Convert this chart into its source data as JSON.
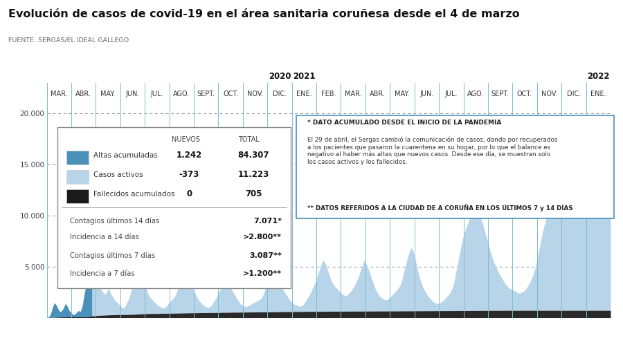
{
  "title": "Evolución de casos de covid-19 en el área sanitaria coruñesa desde el 4 de marzo",
  "source": "FUENTE: SERGAS/EL IDEAL GALLEGO",
  "background_color": "#ffffff",
  "area_color_light": "#b8d4e8",
  "area_color_dark": "#4a90b8",
  "deceased_color": "#2a2a2a",
  "vline_color": "#7abcd4",
  "ylim": [
    0,
    21000
  ],
  "yticks": [
    5000,
    10000,
    15000,
    20000
  ],
  "ytick_labels": [
    "5.000",
    "10.000",
    "15.000",
    "20.000"
  ],
  "months": [
    "MAR.",
    "ABR.",
    "MAY.",
    "JUN.",
    "JUL.",
    "AGO.",
    "SEPT.",
    "OCT.",
    "NOV.",
    "DIC.",
    "ENE.",
    "FEB.",
    "MAR.",
    "ABR.",
    "MAY.",
    "JUN.",
    "JUL.",
    "AGO.",
    "SEPT.",
    "OCT.",
    "NOV.",
    "DIC.",
    "ENE."
  ],
  "year_labels": [
    {
      "label": "2020",
      "index": 9
    },
    {
      "label": "2021",
      "index": 10
    },
    {
      "label": "2022",
      "index": 22
    }
  ],
  "legend_nuevos_label": "NUEVOS",
  "legend_total_label": "TOTAL",
  "legend_items": [
    {
      "label": "Altas acumuladas",
      "nuevos": "1.242",
      "total": "84.307",
      "color": "#4a90b8"
    },
    {
      "label": "Casos activos",
      "nuevos": "-373",
      "total": "11.223",
      "color": "#b8d4e8"
    },
    {
      "label": "Fallecidos acumulados",
      "nuevos": "0",
      "total": "705",
      "color": "#1a1a1a"
    }
  ],
  "extra_stats": [
    {
      "label": "Contagios últimos 14 días",
      "value": "7.071*"
    },
    {
      "label": "Incidencia a 14 días",
      "value": ">2.800**"
    },
    {
      "label": "Contagios últimos 7 días",
      "value": "3.087**"
    },
    {
      "label": "Incidencia a 7 días",
      "value": ">1.200**"
    }
  ],
  "note_line1": "* DATO ACUMULADO DESDE EL INICIO DE LA PANDEMIA",
  "note_line2": "El 29 de abril, el Sergas cambió la comunicación de casos, dando por recuperados\na los pacientes que pasaron la cuarentena en su hogar, por lo que el balance es\nnegativo al haber más altas que nuevos casos. Desde ese día, se muestran solo\nlos casos activos y los fallecidos.",
  "note_line3": "** DATOS REFERIDOS A LA CIUDAD DE A CORUÑA EN LOS ÚLTIMOS 7 y 14 DÍAS",
  "active_cases": [
    0,
    50,
    300,
    900,
    1400,
    1200,
    800,
    500,
    600,
    900,
    1300,
    1000,
    600,
    400,
    200,
    250,
    450,
    600,
    500,
    1100,
    2200,
    3100,
    4200,
    5100,
    5800,
    4900,
    4000,
    3500,
    3000,
    2500,
    2200,
    2000,
    2300,
    2600,
    2100,
    1800,
    1500,
    1300,
    1100,
    900,
    700,
    650,
    900,
    1300,
    1700,
    2400,
    3000,
    4500,
    5900,
    6500,
    5800,
    4500,
    3200,
    2400,
    1900,
    1600,
    1400,
    1200,
    1000,
    800,
    700,
    600,
    500,
    600,
    800,
    1000,
    1200,
    1400,
    1600,
    2000,
    2500,
    2800,
    3200,
    3600,
    4000,
    3800,
    3300,
    2800,
    2300,
    1900,
    1500,
    1200,
    1000,
    800,
    650,
    550,
    500,
    600,
    800,
    1100,
    1400,
    1800,
    2100,
    2500,
    3000,
    3300,
    3100,
    2800,
    2400,
    2000,
    1700,
    1400,
    1100,
    850,
    700,
    600,
    550,
    600,
    700,
    800,
    900,
    1000,
    1100,
    1200,
    1300,
    1600,
    2100,
    2800,
    3600,
    4500,
    5400,
    4800,
    4100,
    3400,
    2800,
    2400,
    2100,
    1800,
    1500,
    1200,
    1000,
    800,
    700,
    600,
    550,
    500,
    600,
    800,
    1100,
    1400,
    1700,
    2100,
    2500,
    2900,
    3500,
    4000,
    4600,
    5000,
    4800,
    4300,
    3700,
    3200,
    2800,
    2500,
    2300,
    2100,
    1900,
    1700,
    1600,
    1500,
    1600,
    1800,
    2000,
    2300,
    2600,
    3000,
    3400,
    4000,
    4500,
    5000,
    4600,
    4200,
    3700,
    3100,
    2600,
    2100,
    1800,
    1500,
    1300,
    1200,
    1100,
    1100,
    1200,
    1400,
    1600,
    1800,
    2000,
    2200,
    2500,
    3000,
    3800,
    4500,
    5200,
    5800,
    6200,
    5800,
    5100,
    4300,
    3500,
    2900,
    2400,
    2000,
    1700,
    1400,
    1200,
    1000,
    800,
    750,
    700,
    750,
    850,
    1000,
    1200,
    1400,
    1600,
    1900,
    2300,
    3000,
    4000,
    5000,
    5900,
    6800,
    7500,
    8000,
    8500,
    9000,
    9400,
    9700,
    10000,
    9800,
    9400,
    9000,
    8500,
    7800,
    7200,
    6500,
    5800,
    5200,
    4700,
    4300,
    3900,
    3500,
    3200,
    2900,
    2600,
    2400,
    2200,
    2100,
    2000,
    1900,
    1800,
    1700,
    1700,
    1800,
    1900,
    2100,
    2400,
    2700,
    3100,
    3600,
    4200,
    5100,
    6000,
    6900,
    7800,
    8500,
    9200,
    9800,
    10300,
    10600,
    10900,
    11200,
    11300,
    11400,
    11500,
    11600,
    11700,
    11800,
    11900,
    12000,
    12100,
    12200,
    12400,
    12600,
    13000,
    13500,
    14000,
    14500,
    15000,
    15800,
    16500,
    17000,
    17200,
    17000,
    16500,
    15800,
    15000,
    14000,
    13000,
    12000,
    11223
  ],
  "deceased": [
    0,
    0,
    5,
    15,
    30,
    45,
    55,
    60,
    62,
    65,
    68,
    70,
    72,
    73,
    74,
    75,
    76,
    77,
    78,
    80,
    85,
    95,
    110,
    130,
    155,
    170,
    185,
    200,
    215,
    225,
    230,
    240,
    250,
    260,
    265,
    270,
    275,
    280,
    285,
    288,
    290,
    293,
    295,
    300,
    305,
    310,
    315,
    320,
    330,
    340,
    350,
    360,
    370,
    380,
    385,
    390,
    393,
    396,
    398,
    400,
    403,
    406,
    408,
    410,
    413,
    416,
    419,
    422,
    425,
    428,
    432,
    436,
    440,
    445,
    450,
    455,
    460,
    463,
    466,
    468,
    470,
    472,
    474,
    476,
    478,
    480,
    482,
    484,
    486,
    488,
    490,
    493,
    496,
    499,
    502,
    505,
    508,
    511,
    514,
    517,
    520,
    522,
    524,
    526,
    528,
    530,
    532,
    534,
    536,
    538,
    540,
    542,
    544,
    546,
    548,
    550,
    552,
    554,
    556,
    558,
    560,
    562,
    564,
    566,
    568,
    570,
    572,
    574,
    576,
    578,
    580,
    582,
    584,
    586,
    588,
    590,
    592,
    594,
    596,
    598,
    600,
    601,
    602,
    603,
    604,
    605,
    606,
    607,
    608,
    609,
    610,
    611,
    612,
    613,
    614,
    615,
    616,
    617,
    618,
    619,
    620,
    621,
    622,
    623,
    624,
    625,
    626,
    627,
    628,
    629,
    630,
    631,
    632,
    633,
    634,
    635,
    636,
    637,
    638,
    639,
    640,
    641,
    642,
    643,
    644,
    645,
    646,
    647,
    648,
    649,
    650,
    651,
    652,
    653,
    654,
    655,
    656,
    657,
    658,
    659,
    660,
    661,
    662,
    663,
    664,
    665,
    666,
    667,
    668,
    669,
    670,
    671,
    672,
    673,
    674,
    675,
    676,
    677,
    678,
    679,
    680,
    681,
    682,
    683,
    684,
    685,
    686,
    687,
    688,
    689,
    690,
    691,
    692,
    693,
    694,
    695,
    696,
    697,
    698,
    699,
    700,
    701,
    702,
    703,
    704,
    705,
    705,
    705,
    705,
    705,
    705,
    705,
    705,
    705,
    705,
    705,
    705,
    705,
    705,
    705,
    705,
    705,
    705,
    705,
    705,
    705,
    705,
    705,
    705,
    705,
    705,
    705,
    705,
    705,
    705,
    705,
    705,
    705,
    705,
    705,
    705,
    705,
    705,
    705,
    705,
    705,
    705,
    705,
    705,
    705,
    705,
    705,
    705,
    705,
    705,
    705,
    705,
    705,
    705,
    705,
    705,
    705
  ]
}
